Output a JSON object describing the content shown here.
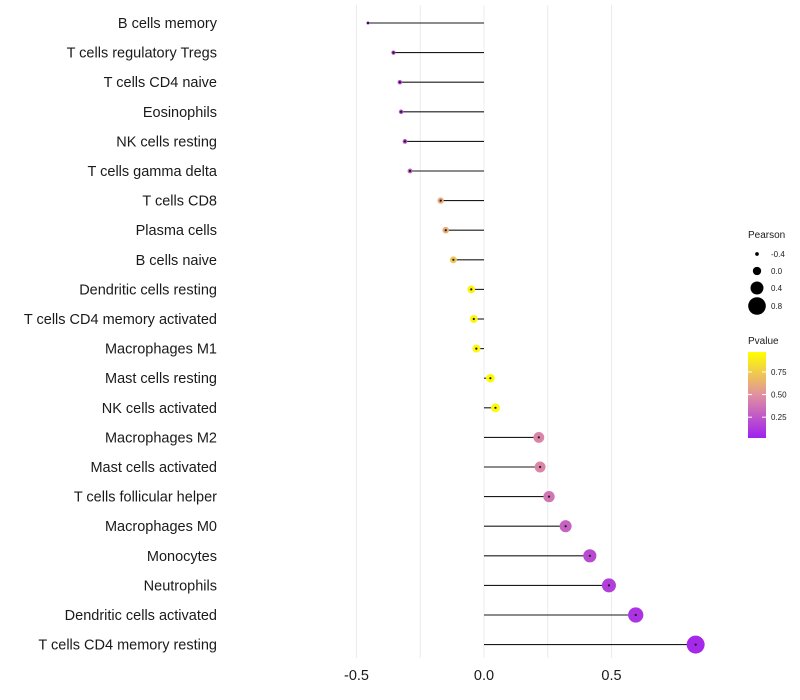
{
  "chart_data": {
    "type": "lollipop",
    "title": "",
    "xlabel": "",
    "ylabel": "",
    "xlim": [
      -1.0,
      1.0
    ],
    "xticks": [
      -0.5,
      0.0,
      0.5
    ],
    "xtick_labels": [
      "-0.5",
      "0.0",
      "0.5"
    ],
    "baseline": 0.0,
    "categories": [
      "B cells memory",
      "T cells regulatory  Tregs",
      "T cells CD4 naive",
      "Eosinophils",
      "NK cells resting",
      "T cells gamma delta",
      "T cells CD8",
      "Plasma cells",
      "B cells naive",
      "Dendritic cells resting",
      "T cells CD4 memory activated",
      "Macrophages M1",
      "Mast cells resting",
      "NK cells activated",
      "Macrophages M2",
      "Mast cells activated",
      "T cells follicular helper",
      "Macrophages M0",
      "Monocytes",
      "Neutrophils",
      "Dendritic cells activated",
      "T cells CD4 memory resting"
    ],
    "pearson": [
      -0.455,
      -0.355,
      -0.33,
      -0.325,
      -0.31,
      -0.29,
      -0.17,
      -0.15,
      -0.12,
      -0.05,
      -0.04,
      -0.03,
      0.025,
      0.045,
      0.215,
      0.22,
      0.255,
      0.32,
      0.415,
      0.49,
      0.595,
      0.83
    ],
    "pvalue": [
      0.1,
      0.18,
      0.2,
      0.2,
      0.22,
      0.3,
      0.6,
      0.62,
      0.72,
      0.92,
      0.93,
      0.94,
      0.95,
      0.95,
      0.45,
      0.45,
      0.38,
      0.3,
      0.2,
      0.15,
      0.1,
      0.06
    ],
    "legend": {
      "size": {
        "title": "Pearson",
        "labels": [
          "-0.4",
          "0.0",
          "0.4",
          "0.8"
        ],
        "values": [
          -0.4,
          0.0,
          0.4,
          0.8
        ]
      },
      "color": {
        "title": "Pvalue",
        "labels": [
          "0.75",
          "0.50",
          "0.25"
        ],
        "values": [
          0.75,
          0.5,
          0.25
        ],
        "range": [
          0.02,
          0.97
        ],
        "low_color": "#a020f0",
        "mid_color": "#e090a0",
        "high_color": "#ffff00"
      }
    },
    "legend_position": "right"
  },
  "colors": {
    "grid": "#ececec",
    "segment": "#1a1a1a",
    "text": "#1a1a1a"
  }
}
